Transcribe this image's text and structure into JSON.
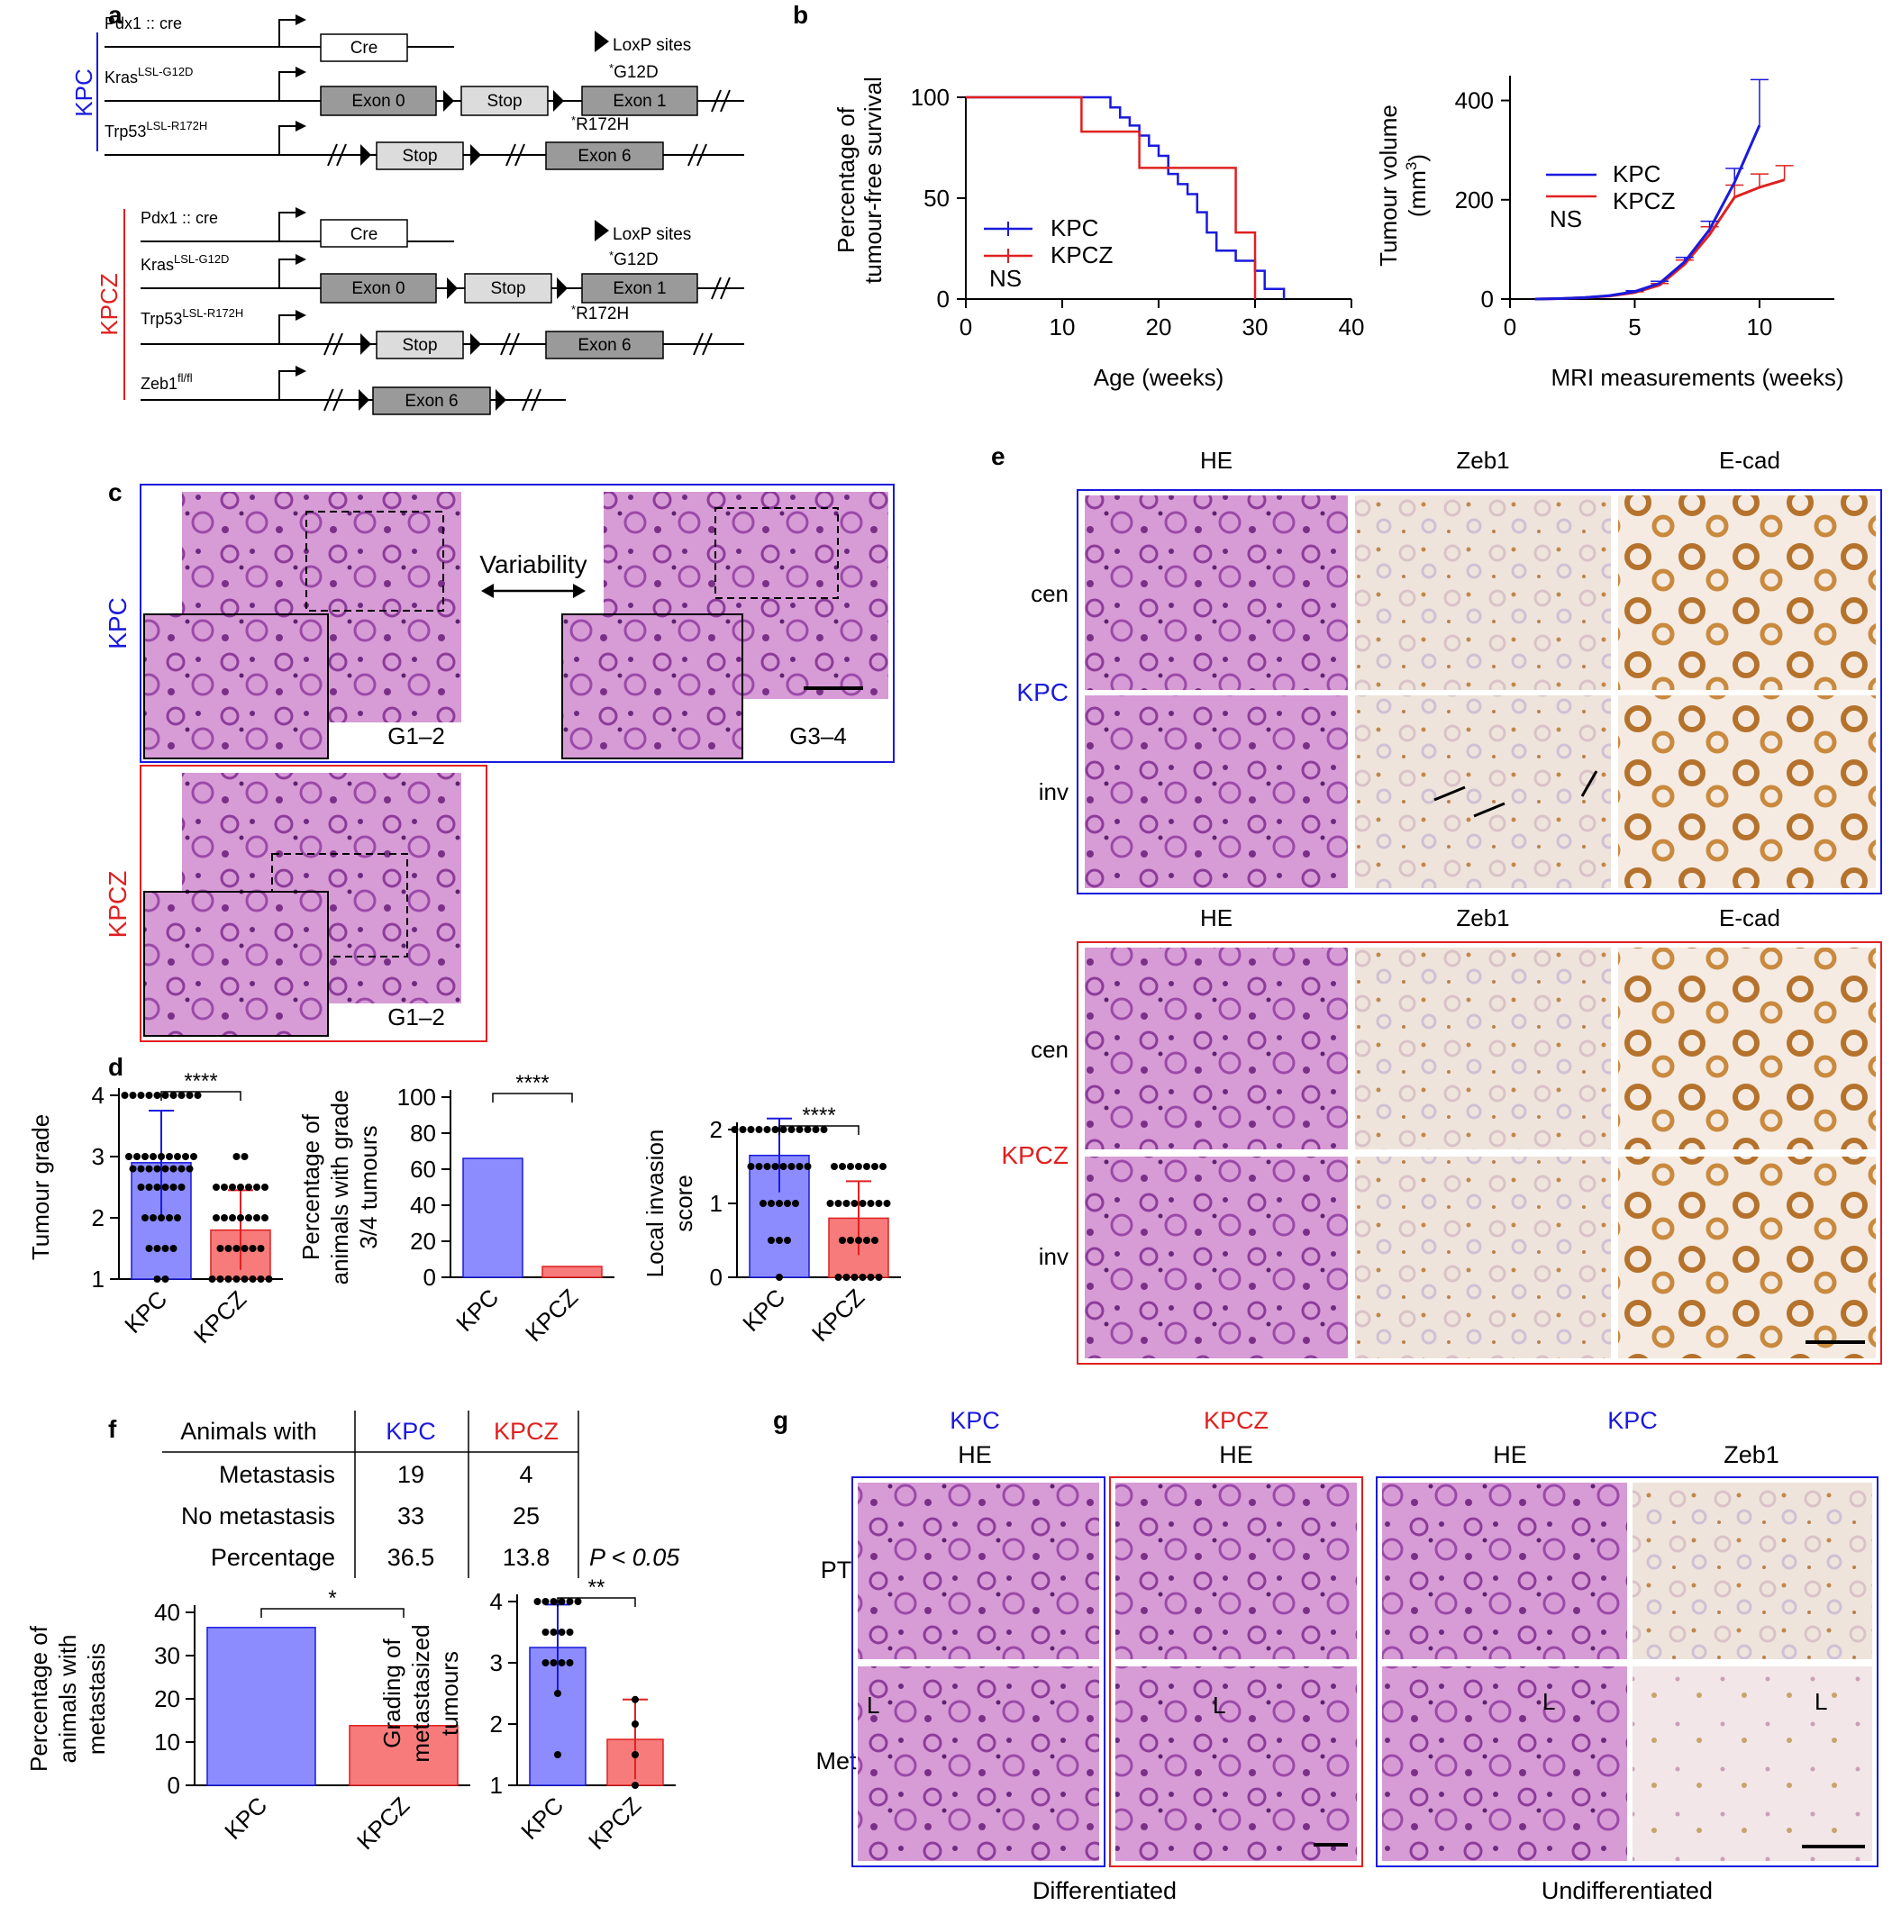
{
  "panel_letters": {
    "a": "a",
    "b": "b",
    "c": "c",
    "d": "d",
    "e": "e",
    "f": "f",
    "g": "g"
  },
  "colors": {
    "kpc": "#1a1adc",
    "kpcz": "#e02020",
    "kpc_bar": "#8c8cff",
    "kpcz_bar": "#f77b7b",
    "he_tissue": "#c77bc9",
    "zeb1_tissue": "#efe2d6",
    "ecad_tissue": "#d9a05a"
  },
  "panel_a": {
    "kpc_group_label": "KPC",
    "kpcz_group_label": "KPCZ",
    "loxp_label": "LoxP sites",
    "pdx1_label": "Pdx1 :: cre",
    "kras_label": "Kras",
    "kras_sup": "LSL-G12D",
    "trp53_label": "Trp53",
    "trp53_sup": "LSL-R172H",
    "zeb1_label": "Zeb1",
    "zeb1_sup": "fl/fl",
    "cre": "Cre",
    "exon0": "Exon 0",
    "stop": "Stop",
    "exon1": "Exon 1",
    "exon6": "Exon 6",
    "g12d": "G12D",
    "r172h": "R172H",
    "asterisk": "*"
  },
  "panel_b_survival": {
    "ylabel_line1": "Percentage of",
    "ylabel_line2": "tumour-free survival",
    "xlabel": "Age (weeks)",
    "xticks": [
      "0",
      "10",
      "20",
      "30",
      "40"
    ],
    "yticks": [
      "0",
      "50",
      "100"
    ],
    "legend": [
      "KPC",
      "KPCZ"
    ],
    "ns": "NS"
  },
  "panel_b_volume": {
    "ylabel_line1": "Tumour volume",
    "ylabel_line2": "(mm",
    "ylabel_sup": "3",
    "ylabel_close": ")",
    "xlabel": "MRI measurements (weeks)",
    "xticks": [
      "0",
      "5",
      "10"
    ],
    "yticks": [
      "0",
      "200",
      "400"
    ],
    "legend": [
      "KPC",
      "KPCZ"
    ],
    "ns": "NS"
  },
  "panel_c": {
    "kpc_label": "KPC",
    "kpcz_label": "KPCZ",
    "variability": "Variability",
    "g12": "G1–2",
    "g34": "G3–4",
    "g12b": "G1–2"
  },
  "panel_d": {
    "grade_ylabel": "Tumour grade",
    "grade_yticks": [
      "1",
      "2",
      "3",
      "4"
    ],
    "pct_ylabel_line1": "Percentage of",
    "pct_ylabel_line2": "animals with grade",
    "pct_ylabel_line3": "3/4 tumours",
    "pct_yticks": [
      "0",
      "20",
      "40",
      "60",
      "80",
      "100"
    ],
    "inv_ylabel_line1": "Local invasion",
    "inv_ylabel_line2": "score",
    "inv_yticks": [
      "0",
      "1",
      "2"
    ],
    "categories": [
      "KPC",
      "KPCZ"
    ],
    "sig": "****"
  },
  "panel_e": {
    "col_he": "HE",
    "col_zeb1": "Zeb1",
    "col_ecad": "E-cad",
    "row_cen": "cen",
    "row_inv": "inv",
    "kpc_label": "KPC",
    "kpcz_label": "KPCZ"
  },
  "panel_f": {
    "table": {
      "header": [
        "Animals  with",
        "KPC",
        "KPCZ"
      ],
      "rows": [
        {
          "label": "Metastasis",
          "kpc": "19",
          "kpcz": "4"
        },
        {
          "label": "No metastasis",
          "kpc": "33",
          "kpcz": "25"
        },
        {
          "label": "Percentage",
          "kpc": "36.5",
          "kpcz": "13.8"
        }
      ],
      "pvalue": "P < 0.05"
    },
    "met_ylabel_line1": "Percentage of",
    "met_ylabel_line2": "animals with",
    "met_ylabel_line3": "metastasis",
    "met_yticks": [
      "0",
      "10",
      "20",
      "30",
      "40"
    ],
    "met_sig": "*",
    "gr_ylabel_line1": "Grading of",
    "gr_ylabel_line2": "metastasized",
    "gr_ylabel_line3": "tumours",
    "gr_yticks": [
      "1",
      "2",
      "3",
      "4"
    ],
    "gr_sig": "**",
    "categories": [
      "KPC",
      "KPCZ"
    ]
  },
  "panel_g": {
    "kpc1": "KPC",
    "kpcz": "KPCZ",
    "kpc2": "KPC",
    "he1": "HE",
    "he2": "HE",
    "he3": "HE",
    "zeb1": "Zeb1",
    "pt": "PT",
    "met": "Met",
    "l": "L",
    "differentiated": "Differentiated",
    "undifferentiated": "Undifferentiated"
  },
  "chart_data": [
    {
      "type": "line",
      "title": "",
      "xlabel": "Age (weeks)",
      "ylabel": "Percentage of tumour-free survival",
      "xlim": [
        0,
        40
      ],
      "ylim": [
        0,
        100
      ],
      "series": [
        {
          "name": "KPC",
          "x": [
            0,
            14,
            15,
            16,
            17,
            18,
            19,
            20,
            21,
            22,
            23,
            24,
            25,
            26,
            27,
            28,
            30,
            31,
            33
          ],
          "y": [
            100,
            100,
            95,
            90,
            86,
            81,
            76,
            71,
            62,
            57,
            52,
            43,
            33,
            24,
            24,
            19,
            14,
            5,
            0
          ]
        },
        {
          "name": "KPCZ",
          "x": [
            0,
            10,
            12,
            18,
            27,
            28,
            30
          ],
          "y": [
            100,
            100,
            83,
            65,
            65,
            33,
            0
          ]
        }
      ]
    },
    {
      "type": "line",
      "title": "",
      "xlabel": "MRI measurements (weeks)",
      "ylabel": "Tumour volume (mm3)",
      "xlim": [
        0,
        13
      ],
      "ylim": [
        0,
        450
      ],
      "series": [
        {
          "name": "KPC",
          "x": [
            1,
            2,
            3,
            4,
            5,
            6,
            7,
            8,
            9,
            10
          ],
          "y": [
            0,
            1,
            3,
            7,
            15,
            32,
            75,
            140,
            235,
            350
          ]
        },
        {
          "name": "KPCZ",
          "x": [
            1,
            2,
            3,
            4,
            5,
            6,
            7,
            8,
            9,
            10,
            11
          ],
          "y": [
            0,
            1,
            3,
            6,
            13,
            28,
            70,
            130,
            205,
            225,
            240
          ]
        }
      ]
    },
    {
      "type": "bar",
      "title": "",
      "ylabel": "Tumour grade",
      "categories": [
        "KPC",
        "KPCZ"
      ],
      "values": [
        2.9,
        1.8
      ],
      "error": [
        0.85,
        0.65
      ],
      "ylim": [
        1,
        4
      ]
    },
    {
      "type": "bar",
      "title": "",
      "ylabel": "Percentage of animals with grade 3/4 tumours",
      "categories": [
        "KPC",
        "KPCZ"
      ],
      "values": [
        66,
        6
      ],
      "ylim": [
        0,
        100
      ]
    },
    {
      "type": "bar",
      "title": "",
      "ylabel": "Local invasion score",
      "categories": [
        "KPC",
        "KPCZ"
      ],
      "values": [
        1.65,
        0.8
      ],
      "error": [
        0.5,
        0.5
      ],
      "ylim": [
        0,
        2
      ]
    },
    {
      "type": "bar",
      "title": "",
      "ylabel": "Percentage of animals with metastasis",
      "categories": [
        "KPC",
        "KPCZ"
      ],
      "values": [
        36.5,
        13.8
      ],
      "ylim": [
        0,
        40
      ]
    },
    {
      "type": "bar",
      "title": "",
      "ylabel": "Grading of metastasized tumours",
      "categories": [
        "KPC",
        "KPCZ"
      ],
      "values": [
        3.25,
        1.75
      ],
      "error": [
        0.7,
        0.65
      ],
      "ylim": [
        1,
        4
      ]
    }
  ]
}
